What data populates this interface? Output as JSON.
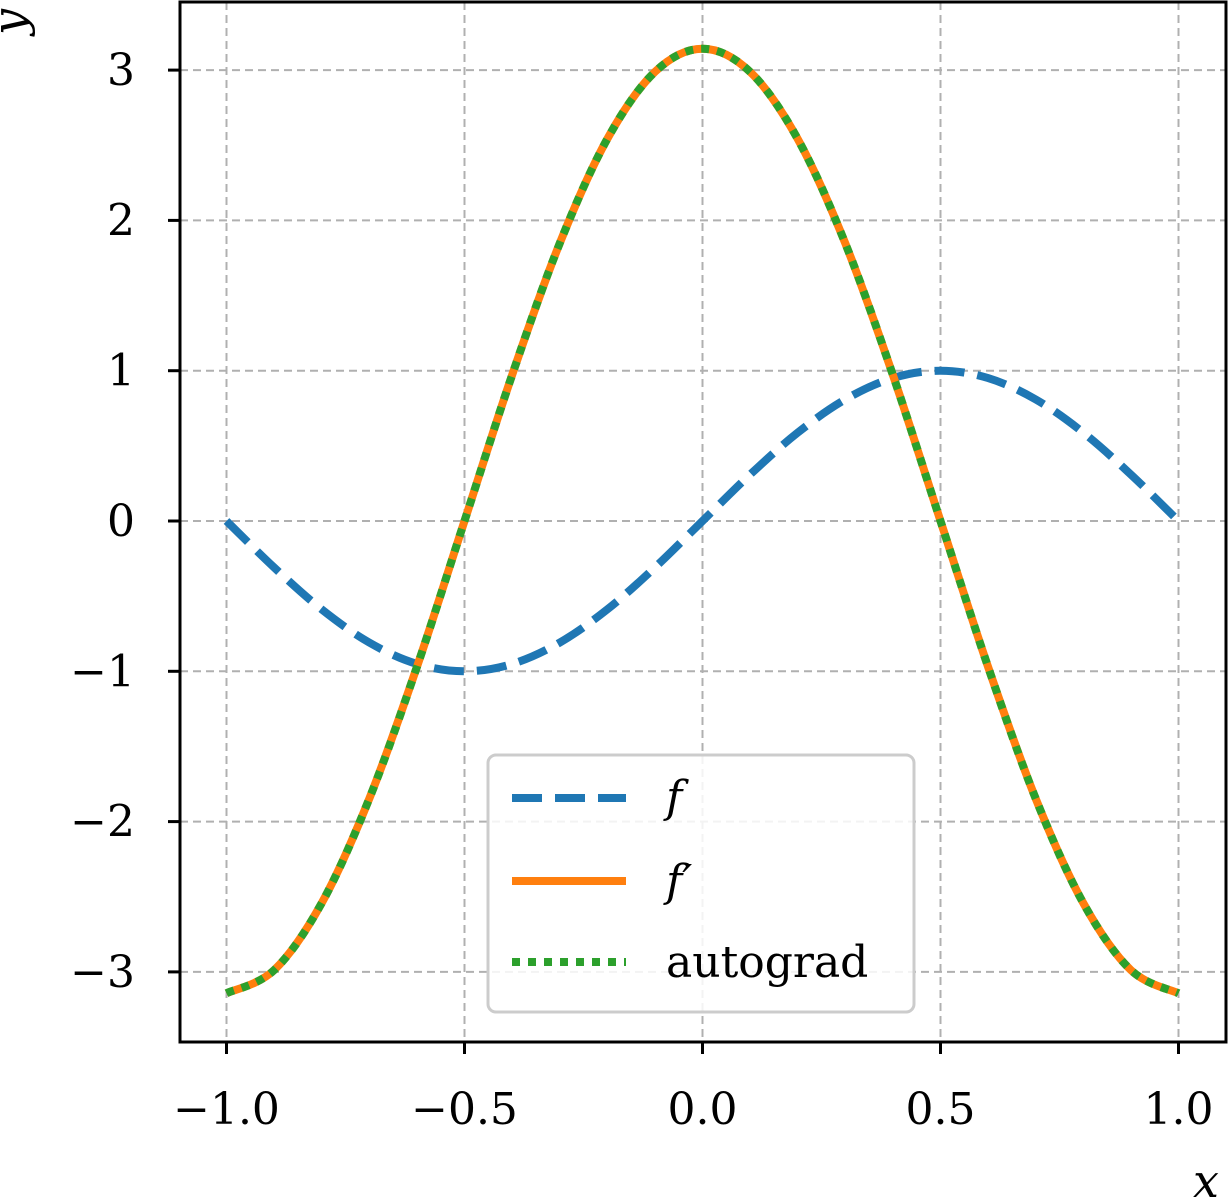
{
  "chart_data": {
    "type": "line",
    "xlabel": "x",
    "ylabel": "y",
    "xlim": [
      -1.1,
      1.1
    ],
    "ylim": [
      -3.45,
      3.45
    ],
    "xticks": [
      -1.0,
      -0.5,
      0.0,
      0.5,
      1.0
    ],
    "xtick_labels": [
      "−1.0",
      "−0.5",
      "0.0",
      "0.5",
      "1.0"
    ],
    "yticks": [
      -3,
      -2,
      -1,
      0,
      1,
      2,
      3
    ],
    "ytick_labels": [
      "−3",
      "−2",
      "−1",
      "0",
      "1",
      "2",
      "3"
    ],
    "grid": true,
    "legend_position": "bottom-center",
    "x": [
      -1.0,
      -0.9,
      -0.8,
      -0.7,
      -0.6,
      -0.5,
      -0.4,
      -0.3,
      -0.2,
      -0.1,
      0.0,
      0.1,
      0.2,
      0.3,
      0.4,
      0.5,
      0.6,
      0.7,
      0.8,
      0.9,
      1.0
    ],
    "series": [
      {
        "name": "f",
        "style": "dashed",
        "color": "#1f77b4",
        "values": [
          0.0,
          -0.309,
          -0.588,
          -0.809,
          -0.951,
          -1.0,
          -0.951,
          -0.809,
          -0.588,
          -0.309,
          0.0,
          0.309,
          0.588,
          0.809,
          0.951,
          1.0,
          0.951,
          0.809,
          0.588,
          0.309,
          0.0
        ]
      },
      {
        "name": "f′",
        "style": "solid",
        "color": "#ff7f0e",
        "values": [
          -3.142,
          -2.988,
          -2.542,
          -1.847,
          -0.971,
          0.0,
          0.971,
          1.847,
          2.542,
          2.988,
          3.142,
          2.988,
          2.542,
          1.847,
          0.971,
          0.0,
          -0.971,
          -1.847,
          -2.542,
          -2.988,
          -3.142
        ]
      },
      {
        "name": "autograd",
        "style": "dotted",
        "color": "#2ca02c",
        "values": [
          -3.142,
          -2.988,
          -2.542,
          -1.847,
          -0.971,
          0.0,
          0.971,
          1.847,
          2.542,
          2.988,
          3.142,
          2.988,
          2.542,
          1.847,
          0.971,
          0.0,
          -0.971,
          -1.847,
          -2.542,
          -2.988,
          -3.142
        ]
      }
    ]
  }
}
